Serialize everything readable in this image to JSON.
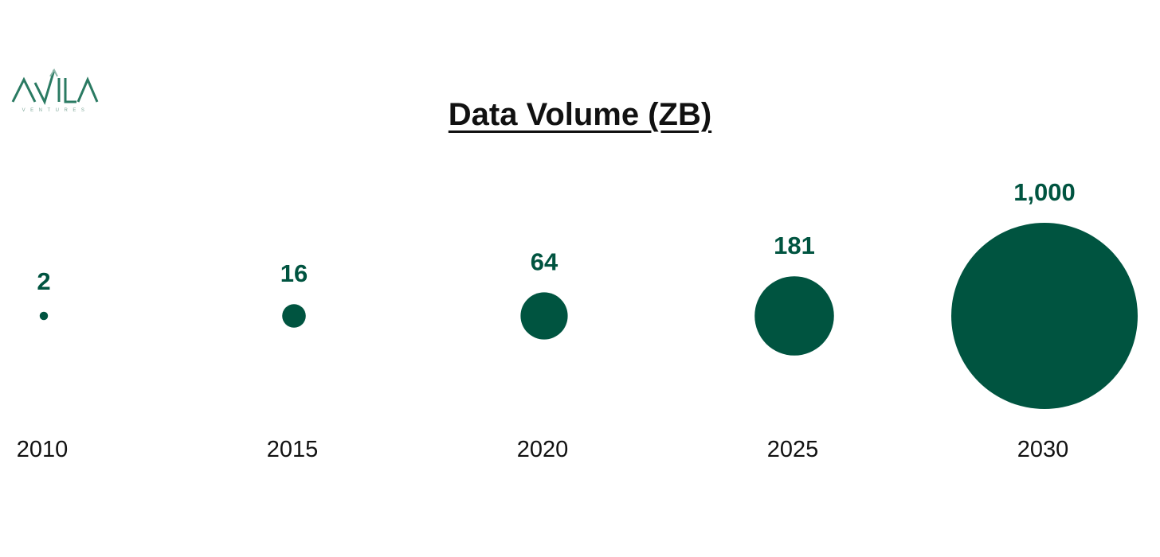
{
  "brand": {
    "logo_text": "AVILA",
    "logo_subtext": "VENTURES",
    "primary_color": "#005440",
    "light_color": "#8fb8aa"
  },
  "chart_data": {
    "type": "bubble",
    "title": "Data Volume (ZB)",
    "categories": [
      "2010",
      "2015",
      "2020",
      "2025",
      "2030"
    ],
    "values": [
      2,
      16,
      64,
      181,
      1000
    ],
    "value_labels": [
      "2",
      "16",
      "64",
      "181",
      "1,000"
    ],
    "bubble_color": "#005440",
    "label_color": "#005440",
    "legend": "none",
    "grid": false
  }
}
